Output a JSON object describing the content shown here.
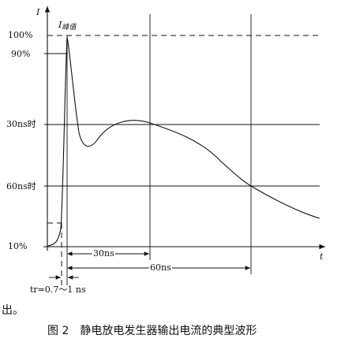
{
  "axis": {
    "y_label": "I",
    "x_label": "t"
  },
  "peak_label": {
    "main": "I",
    "sub": "峰值"
  },
  "levels": {
    "p100": "100%",
    "p90": "90%",
    "t30": "30ns时",
    "t60": "60ns时",
    "p10": "10%"
  },
  "spans": {
    "s30": "30ns",
    "s60": "60ns",
    "rise": "tr=0.7～1 ns"
  },
  "fragment": "出。",
  "caption": "图 2　静电放电发生器输出电流的典型波形"
}
